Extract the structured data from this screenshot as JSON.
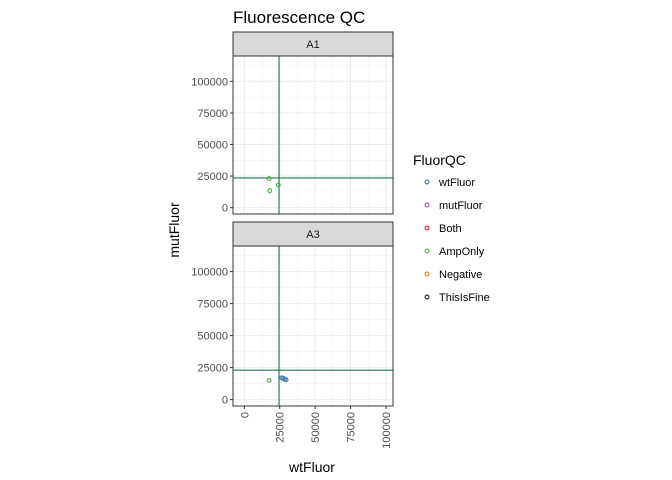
{
  "chart_data": {
    "type": "scatter",
    "title": "Fluorescence QC",
    "xlabel": "wtFluor",
    "ylabel": "mutFluor",
    "xlim": [
      -8000,
      105000
    ],
    "ylim": [
      -5000,
      120000
    ],
    "x_ticks": [
      0,
      25000,
      50000,
      75000,
      100000
    ],
    "y_ticks": [
      0,
      25000,
      50000,
      75000,
      100000
    ],
    "grid": true,
    "legend_position": "right",
    "legend_title": "FluorQC",
    "categories": [
      "wtFluor",
      "mutFluor",
      "Both",
      "AmpOnly",
      "Negative",
      "ThisIsFine"
    ],
    "colors": {
      "wtFluor": "#377eb8",
      "mutFluor": "#984ea3",
      "Both": "#e41a1c",
      "AmpOnly": "#4daf4a",
      "Negative": "#ff7f00",
      "ThisIsFine": "#1a1a1a"
    },
    "threshold_color": "#1b7a4d",
    "panels": [
      {
        "label": "A1",
        "x_threshold": 24500,
        "y_threshold": 23500,
        "points": [
          {
            "x": 17500,
            "y": 23000,
            "group": "AmpOnly"
          },
          {
            "x": 24000,
            "y": 18000,
            "group": "AmpOnly"
          },
          {
            "x": 18000,
            "y": 13500,
            "group": "AmpOnly"
          }
        ]
      },
      {
        "label": "A3",
        "x_threshold": 24500,
        "y_threshold": 23000,
        "points": [
          {
            "x": 17500,
            "y": 15000,
            "group": "AmpOnly"
          },
          {
            "x": 26500,
            "y": 17000,
            "group": "wtFluor"
          },
          {
            "x": 27500,
            "y": 16500,
            "group": "wtFluor"
          },
          {
            "x": 28500,
            "y": 16000,
            "group": "wtFluor"
          },
          {
            "x": 29500,
            "y": 15500,
            "group": "wtFluor"
          }
        ]
      }
    ]
  }
}
